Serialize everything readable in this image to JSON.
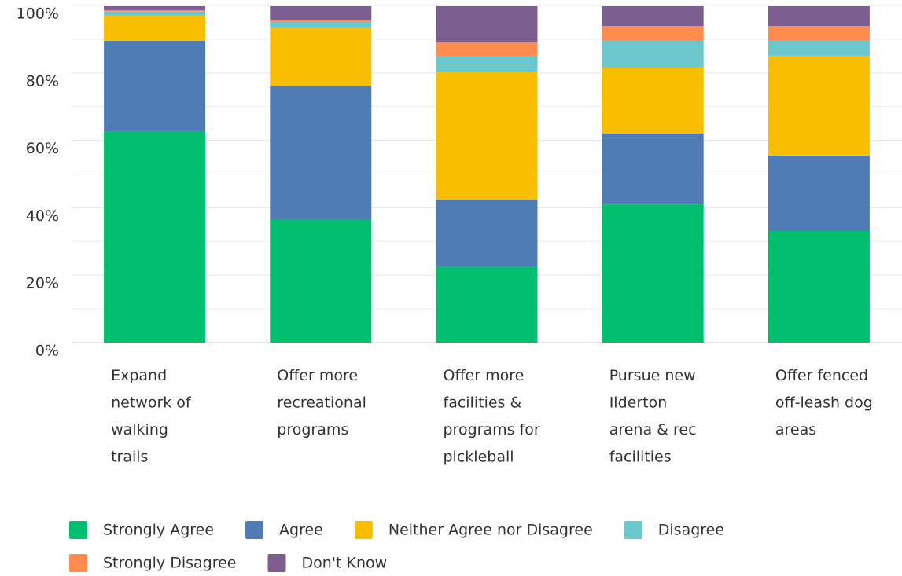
{
  "chart_data": {
    "type": "stacked_bar",
    "categories": [
      "Expand network of walking trails",
      "Offer more recreational programs",
      "Offer more facilities & programs for pickleball",
      "Pursue new Ilderton arena & rec facilities",
      "Offer fenced off-leash dog areas"
    ],
    "series": [
      {
        "name": "Strongly Agree",
        "color": "#00bf6f",
        "values": [
          62.5,
          36.6,
          22.6,
          41.0,
          33.1
        ]
      },
      {
        "name": "Agree",
        "color": "#507cb6",
        "values": [
          27.0,
          39.4,
          19.8,
          21.0,
          22.4
        ]
      },
      {
        "name": "Neither Agree nor Disagree",
        "color": "#f9be00",
        "values": [
          7.5,
          17.5,
          38.0,
          19.6,
          29.6
        ]
      },
      {
        "name": "Disagree",
        "color": "#6bc8cd",
        "values": [
          1.2,
          1.6,
          4.7,
          7.9,
          4.4
        ]
      },
      {
        "name": "Strongly Disagree",
        "color": "#ff8b4f",
        "values": [
          0.4,
          0.5,
          3.9,
          4.4,
          4.4
        ]
      },
      {
        "name": "Don't Know",
        "color": "#7d5e90",
        "values": [
          1.4,
          4.4,
          11.0,
          6.1,
          6.1
        ]
      }
    ],
    "ylim": [
      0,
      100
    ],
    "yticks": [
      {
        "value": 0,
        "label": "0%"
      },
      {
        "value": 20,
        "label": "20%"
      },
      {
        "value": 40,
        "label": "40%"
      },
      {
        "value": 60,
        "label": "60%"
      },
      {
        "value": 80,
        "label": "80%"
      },
      {
        "value": 100,
        "label": "100%"
      }
    ],
    "minor_yticks": [
      10,
      30,
      50,
      70,
      90
    ],
    "grid": true,
    "legend": "bottom"
  }
}
